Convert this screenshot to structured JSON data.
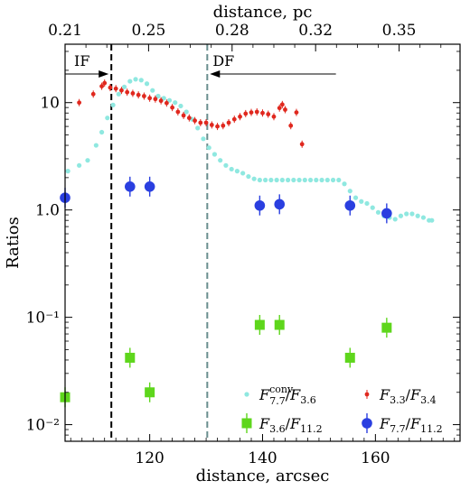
{
  "chart_data": {
    "type": "scatter",
    "xlabel": "distance, arcsec",
    "x2label": "distance, pc",
    "ylabel": "Ratios",
    "xlim": [
      105,
      175
    ],
    "ylim": [
      0.007,
      35
    ],
    "yscale": "log",
    "x_ticks": [
      120,
      140,
      160
    ],
    "x2_ticks": [
      "0.21",
      "0.25",
      "0.28",
      "0.32",
      "0.35"
    ],
    "x2_tick_arcsec": [
      105,
      119.8,
      134.6,
      149.4,
      164.2
    ],
    "y_ticks": [
      {
        "value": 0.01,
        "label": "10⁻²"
      },
      {
        "value": 0.1,
        "label": "10⁻¹"
      },
      {
        "value": 1,
        "label": "1.0"
      },
      {
        "value": 10,
        "label": "10"
      }
    ],
    "regions": [
      {
        "label": "IF",
        "x": 113.2,
        "direction": "left",
        "color": "#000000"
      },
      {
        "label": "DF",
        "x": 130.2,
        "direction": "left",
        "color": "#6a8f8f"
      }
    ],
    "series": [
      {
        "name": "F7.7conv/F3.6",
        "color": "#8fe8e0",
        "marker": "dot",
        "points": [
          [
            105.5,
            2.3
          ],
          [
            107.5,
            2.6
          ],
          [
            109,
            2.9
          ],
          [
            110.5,
            4.0
          ],
          [
            111.5,
            5.3
          ],
          [
            112.5,
            7.2
          ],
          [
            113.5,
            9.5
          ],
          [
            114.5,
            12.0
          ],
          [
            115.5,
            14.0
          ],
          [
            116.5,
            15.8
          ],
          [
            117.5,
            16.5
          ],
          [
            118.5,
            16.2
          ],
          [
            119.5,
            15.0
          ],
          [
            120.5,
            13.0
          ],
          [
            121.5,
            11.5
          ],
          [
            122.5,
            11.0
          ],
          [
            123.5,
            10.5
          ],
          [
            124.5,
            10.0
          ],
          [
            125.5,
            9.3
          ],
          [
            126.5,
            8.2
          ],
          [
            127.5,
            7.0
          ],
          [
            128.5,
            5.8
          ],
          [
            129.5,
            4.6
          ],
          [
            130.5,
            3.8
          ],
          [
            131.5,
            3.3
          ],
          [
            132.5,
            2.9
          ],
          [
            133.5,
            2.6
          ],
          [
            134.5,
            2.4
          ],
          [
            135.5,
            2.3
          ],
          [
            136.5,
            2.2
          ],
          [
            137.5,
            2.05
          ],
          [
            138.5,
            1.95
          ],
          [
            139.5,
            1.9
          ],
          [
            140.5,
            1.9
          ],
          [
            141.5,
            1.9
          ],
          [
            142.5,
            1.9
          ],
          [
            143.5,
            1.9
          ],
          [
            144.5,
            1.9
          ],
          [
            145.5,
            1.9
          ],
          [
            146.5,
            1.9
          ],
          [
            147.5,
            1.9
          ],
          [
            148.5,
            1.9
          ],
          [
            149.5,
            1.9
          ],
          [
            150.5,
            1.9
          ],
          [
            151.5,
            1.9
          ],
          [
            152.5,
            1.9
          ],
          [
            153.5,
            1.9
          ],
          [
            154.5,
            1.75
          ],
          [
            155.5,
            1.5
          ],
          [
            156.5,
            1.3
          ],
          [
            157.5,
            1.2
          ],
          [
            158.5,
            1.15
          ],
          [
            159.5,
            1.05
          ],
          [
            160.5,
            0.95
          ],
          [
            161.5,
            0.88
          ],
          [
            162.5,
            0.85
          ],
          [
            163.5,
            0.82
          ],
          [
            164.5,
            0.88
          ],
          [
            165.5,
            0.92
          ],
          [
            166.5,
            0.92
          ],
          [
            167.5,
            0.88
          ],
          [
            168.5,
            0.85
          ],
          [
            169.5,
            0.8
          ],
          [
            170,
            0.8
          ]
        ]
      },
      {
        "name": "F3.3/F3.4",
        "color": "#e0281e",
        "marker": "small-errorbar",
        "points": [
          [
            107.5,
            10.0
          ],
          [
            110,
            12.0
          ],
          [
            111.5,
            14.2
          ],
          [
            112,
            15.2
          ],
          [
            113,
            13.8
          ],
          [
            114,
            13.5
          ],
          [
            115,
            13.0
          ],
          [
            116,
            12.5
          ],
          [
            117,
            12.2
          ],
          [
            118,
            11.8
          ],
          [
            119,
            11.5
          ],
          [
            120,
            11.0
          ],
          [
            121,
            10.8
          ],
          [
            122,
            10.4
          ],
          [
            123,
            9.9
          ],
          [
            124,
            9.0
          ],
          [
            125,
            8.2
          ],
          [
            126,
            7.6
          ],
          [
            127,
            7.2
          ],
          [
            128,
            6.8
          ],
          [
            129,
            6.5
          ],
          [
            130,
            6.5
          ],
          [
            131,
            6.2
          ],
          [
            132,
            6.0
          ],
          [
            133,
            6.1
          ],
          [
            134,
            6.5
          ],
          [
            135,
            7.0
          ],
          [
            136,
            7.4
          ],
          [
            137,
            7.9
          ],
          [
            138,
            8.1
          ],
          [
            139,
            8.2
          ],
          [
            140,
            8.0
          ],
          [
            141,
            7.8
          ],
          [
            142,
            7.4
          ],
          [
            143,
            8.9
          ],
          [
            143.5,
            9.6
          ],
          [
            144,
            8.6
          ],
          [
            145,
            6.1
          ],
          [
            146,
            8.1
          ],
          [
            147,
            4.1
          ]
        ]
      },
      {
        "name": "F3.6/F11.2",
        "color": "#5ed61c",
        "marker": "square-errorbar",
        "points": [
          [
            105,
            0.018
          ],
          [
            116.5,
            0.042
          ],
          [
            120,
            0.02
          ],
          [
            139.5,
            0.085
          ],
          [
            143,
            0.085
          ],
          [
            155.5,
            0.042
          ],
          [
            162,
            0.08
          ]
        ]
      },
      {
        "name": "F7.7/F11.2",
        "color": "#2a3fe0",
        "marker": "circle-errorbar",
        "points": [
          [
            105,
            1.3
          ],
          [
            116.5,
            1.65
          ],
          [
            120,
            1.65
          ],
          [
            139.5,
            1.1
          ],
          [
            143,
            1.13
          ],
          [
            155.5,
            1.1
          ],
          [
            162,
            0.93
          ]
        ]
      }
    ],
    "legend": [
      {
        "series": 0,
        "base": "F",
        "sub": "7.7",
        "sup": "conv",
        "den_base": "F",
        "den_sub": "3.6"
      },
      {
        "series": 1,
        "base": "F",
        "sub": "3.3",
        "sup": "",
        "den_base": "F",
        "den_sub": "3.4"
      },
      {
        "series": 2,
        "base": "F",
        "sub": "3.6",
        "sup": "",
        "den_base": "F",
        "den_sub": "11.2"
      },
      {
        "series": 3,
        "base": "F",
        "sub": "7.7",
        "sup": "",
        "den_base": "F",
        "den_sub": "11.2"
      }
    ],
    "legend_position": "lower-right",
    "grid": false
  }
}
